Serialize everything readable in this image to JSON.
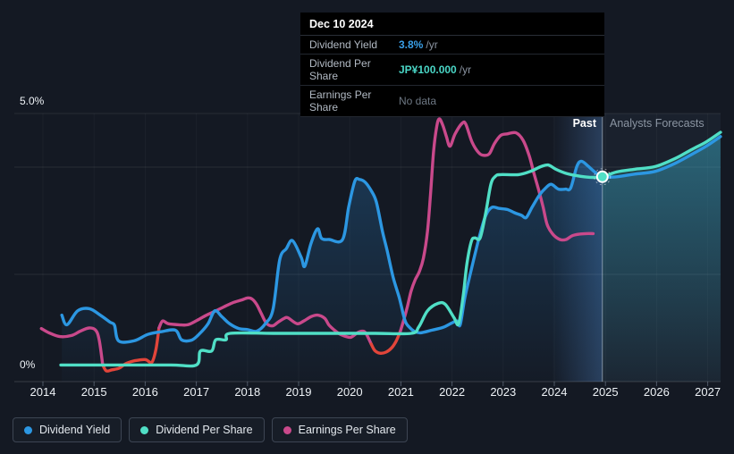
{
  "tooltip": {
    "date": "Dec 10 2024",
    "rows": [
      {
        "label": "Dividend Yield",
        "value": "3.8%",
        "suffix": "/yr",
        "color": "#3aa0e8"
      },
      {
        "label": "Dividend Per Share",
        "value": "JP¥100.000",
        "suffix": "/yr",
        "color": "#4ad6c6"
      },
      {
        "label": "Earnings Per Share",
        "value": "No data",
        "suffix": "",
        "color": "#6e7884"
      }
    ]
  },
  "y_axis": {
    "top_label": "5.0%",
    "bottom_label": "0%"
  },
  "annotations": {
    "past_label": "Past",
    "forecast_label": "Analysts Forecasts"
  },
  "legend": [
    {
      "label": "Dividend Yield",
      "color": "#2c97e2"
    },
    {
      "label": "Dividend Per Share",
      "color": "#50dfc6"
    },
    {
      "label": "Earnings Per Share",
      "color": "#c9498b"
    }
  ],
  "colors": {
    "background": "#141923",
    "dividend_yield": "#2c97e2",
    "dividend_per_share": "#50dfc6",
    "earnings_per_share": "#c9498b",
    "earnings_negative": "#e2453a",
    "gridline": "rgba(255,255,255,0.09)",
    "divider": "rgba(225,235,245,0.5)",
    "past_band": "rgba(90,150,225,0.30)",
    "forecast_band": "rgba(130,170,220,0.06)"
  },
  "chart_data": {
    "type": "line",
    "title": "Dividend history and forecast",
    "x_axis": {
      "unit": "year",
      "ticks": [
        2014,
        2015,
        2016,
        2017,
        2018,
        2019,
        2020,
        2021,
        2022,
        2023,
        2024,
        2025,
        2026,
        2027
      ],
      "range": [
        2013.9,
        2027.3
      ]
    },
    "y_axis": {
      "unit": "%",
      "min": 0,
      "max": 5,
      "gridline_values": [
        5,
        4,
        2,
        0
      ],
      "top_label": "5.0%",
      "bottom_label": "0%"
    },
    "divider": {
      "x": 2024.94,
      "date": "Dec 10 2024",
      "label_left": "Past",
      "label_right": "Analysts Forecasts",
      "band_start": 2023.95
    },
    "marker": {
      "x": 2024.94,
      "y": 3.82,
      "series": "Dividend Per Share"
    },
    "note": "Dividend Per Share (JP¥100.000/yr at marker) and Earnings Per Share are drawn on a hidden JP¥ scale; their values below are y-positions expressed on the visible 0–5% axis.",
    "series": [
      {
        "name": "Dividend Yield",
        "color": "#2c97e2",
        "points": [
          [
            2014.37,
            1.24
          ],
          [
            2014.47,
            1.06
          ],
          [
            2014.68,
            1.32
          ],
          [
            2014.91,
            1.36
          ],
          [
            2015.12,
            1.24
          ],
          [
            2015.31,
            1.11
          ],
          [
            2015.4,
            1.05
          ],
          [
            2015.48,
            0.76
          ],
          [
            2015.78,
            0.76
          ],
          [
            2016.05,
            0.88
          ],
          [
            2016.31,
            0.93
          ],
          [
            2016.59,
            0.96
          ],
          [
            2016.71,
            0.78
          ],
          [
            2016.9,
            0.77
          ],
          [
            2017.06,
            0.89
          ],
          [
            2017.23,
            1.08
          ],
          [
            2017.36,
            1.32
          ],
          [
            2017.5,
            1.21
          ],
          [
            2017.65,
            1.08
          ],
          [
            2017.83,
            0.99
          ],
          [
            2018.0,
            0.97
          ],
          [
            2018.18,
            0.94
          ],
          [
            2018.35,
            1.08
          ],
          [
            2018.5,
            1.35
          ],
          [
            2018.63,
            2.27
          ],
          [
            2018.76,
            2.48
          ],
          [
            2018.88,
            2.63
          ],
          [
            2019.05,
            2.32
          ],
          [
            2019.12,
            2.15
          ],
          [
            2019.24,
            2.57
          ],
          [
            2019.37,
            2.85
          ],
          [
            2019.45,
            2.67
          ],
          [
            2019.6,
            2.65
          ],
          [
            2019.86,
            2.65
          ],
          [
            2019.98,
            3.26
          ],
          [
            2020.1,
            3.74
          ],
          [
            2020.19,
            3.77
          ],
          [
            2020.3,
            3.72
          ],
          [
            2020.42,
            3.56
          ],
          [
            2020.52,
            3.35
          ],
          [
            2020.64,
            2.8
          ],
          [
            2020.73,
            2.45
          ],
          [
            2020.85,
            1.94
          ],
          [
            2020.97,
            1.56
          ],
          [
            2021.08,
            1.14
          ],
          [
            2021.17,
            1.01
          ],
          [
            2021.26,
            0.94
          ],
          [
            2021.38,
            0.91
          ],
          [
            2021.61,
            0.96
          ],
          [
            2021.82,
            1.01
          ],
          [
            2021.99,
            1.09
          ],
          [
            2022.1,
            1.13
          ],
          [
            2022.16,
            1.06
          ],
          [
            2022.25,
            1.56
          ],
          [
            2022.36,
            2.02
          ],
          [
            2022.45,
            2.38
          ],
          [
            2022.55,
            2.76
          ],
          [
            2022.66,
            3.1
          ],
          [
            2022.78,
            3.25
          ],
          [
            2022.92,
            3.23
          ],
          [
            2023.08,
            3.21
          ],
          [
            2023.22,
            3.15
          ],
          [
            2023.36,
            3.1
          ],
          [
            2023.45,
            3.06
          ],
          [
            2023.57,
            3.26
          ],
          [
            2023.71,
            3.48
          ],
          [
            2023.83,
            3.61
          ],
          [
            2023.94,
            3.68
          ],
          [
            2024.08,
            3.59
          ],
          [
            2024.22,
            3.59
          ],
          [
            2024.32,
            3.61
          ],
          [
            2024.44,
            4.01
          ],
          [
            2024.53,
            4.11
          ],
          [
            2024.66,
            4.02
          ],
          [
            2024.79,
            3.91
          ],
          [
            2024.94,
            3.82
          ]
        ],
        "forecast_points": [
          [
            2024.94,
            3.82
          ],
          [
            2025.22,
            3.82
          ],
          [
            2025.57,
            3.87
          ],
          [
            2025.97,
            3.92
          ],
          [
            2026.36,
            4.07
          ],
          [
            2026.71,
            4.25
          ],
          [
            2026.97,
            4.39
          ],
          [
            2027.25,
            4.57
          ]
        ]
      },
      {
        "name": "Dividend Per Share",
        "color": "#50dfc6",
        "points": [
          [
            2014.35,
            0.31
          ],
          [
            2015.5,
            0.31
          ],
          [
            2016.5,
            0.31
          ],
          [
            2017.0,
            0.31
          ],
          [
            2017.08,
            0.57
          ],
          [
            2017.3,
            0.57
          ],
          [
            2017.38,
            0.78
          ],
          [
            2017.58,
            0.78
          ],
          [
            2017.66,
            0.9
          ],
          [
            2018.5,
            0.9
          ],
          [
            2019.5,
            0.9
          ],
          [
            2020.5,
            0.9
          ],
          [
            2021.2,
            0.9
          ],
          [
            2021.35,
            1.02
          ],
          [
            2021.52,
            1.32
          ],
          [
            2021.73,
            1.46
          ],
          [
            2021.87,
            1.44
          ],
          [
            2022.04,
            1.19
          ],
          [
            2022.13,
            1.08
          ],
          [
            2022.22,
            1.61
          ],
          [
            2022.29,
            2.19
          ],
          [
            2022.38,
            2.62
          ],
          [
            2022.45,
            2.68
          ],
          [
            2022.55,
            2.68
          ],
          [
            2022.66,
            3.15
          ],
          [
            2022.76,
            3.68
          ],
          [
            2022.85,
            3.83
          ],
          [
            2022.95,
            3.86
          ],
          [
            2023.3,
            3.86
          ],
          [
            2023.53,
            3.92
          ],
          [
            2023.74,
            4.01
          ],
          [
            2023.88,
            4.04
          ],
          [
            2024.03,
            3.96
          ],
          [
            2024.21,
            3.89
          ],
          [
            2024.44,
            3.84
          ],
          [
            2024.7,
            3.81
          ],
          [
            2024.94,
            3.82
          ]
        ],
        "forecast_points": [
          [
            2024.94,
            3.82
          ],
          [
            2025.22,
            3.91
          ],
          [
            2025.57,
            3.96
          ],
          [
            2025.97,
            4.01
          ],
          [
            2026.36,
            4.16
          ],
          [
            2026.71,
            4.34
          ],
          [
            2026.97,
            4.47
          ],
          [
            2027.25,
            4.65
          ]
        ]
      },
      {
        "name": "Earnings Per Share",
        "color": "#c9498b",
        "negative_color": "#e2453a",
        "red_ranges": [
          [
            2015.08,
            2016.18
          ],
          [
            2020.36,
            2020.93
          ]
        ],
        "points": [
          [
            2013.97,
            0.99
          ],
          [
            2014.12,
            0.91
          ],
          [
            2014.33,
            0.84
          ],
          [
            2014.56,
            0.86
          ],
          [
            2014.73,
            0.94
          ],
          [
            2014.9,
            1.0
          ],
          [
            2015.03,
            0.96
          ],
          [
            2015.1,
            0.78
          ],
          [
            2015.17,
            0.31
          ],
          [
            2015.24,
            0.2
          ],
          [
            2015.35,
            0.22
          ],
          [
            2015.49,
            0.25
          ],
          [
            2015.61,
            0.33
          ],
          [
            2015.75,
            0.38
          ],
          [
            2015.87,
            0.4
          ],
          [
            2016.01,
            0.41
          ],
          [
            2016.13,
            0.36
          ],
          [
            2016.21,
            0.6
          ],
          [
            2016.27,
            1.0
          ],
          [
            2016.34,
            1.13
          ],
          [
            2016.45,
            1.08
          ],
          [
            2016.66,
            1.06
          ],
          [
            2016.83,
            1.06
          ],
          [
            2017.01,
            1.14
          ],
          [
            2017.18,
            1.23
          ],
          [
            2017.36,
            1.31
          ],
          [
            2017.53,
            1.39
          ],
          [
            2017.71,
            1.47
          ],
          [
            2017.88,
            1.52
          ],
          [
            2018.0,
            1.56
          ],
          [
            2018.09,
            1.54
          ],
          [
            2018.18,
            1.44
          ],
          [
            2018.27,
            1.27
          ],
          [
            2018.37,
            1.09
          ],
          [
            2018.49,
            1.04
          ],
          [
            2018.6,
            1.11
          ],
          [
            2018.72,
            1.18
          ],
          [
            2018.79,
            1.19
          ],
          [
            2018.97,
            1.08
          ],
          [
            2019.1,
            1.13
          ],
          [
            2019.24,
            1.21
          ],
          [
            2019.37,
            1.24
          ],
          [
            2019.51,
            1.18
          ],
          [
            2019.59,
            1.06
          ],
          [
            2019.7,
            0.96
          ],
          [
            2019.8,
            0.89
          ],
          [
            2019.93,
            0.84
          ],
          [
            2020.03,
            0.83
          ],
          [
            2020.15,
            0.91
          ],
          [
            2020.24,
            0.94
          ],
          [
            2020.31,
            0.91
          ],
          [
            2020.42,
            0.7
          ],
          [
            2020.49,
            0.58
          ],
          [
            2020.59,
            0.53
          ],
          [
            2020.71,
            0.55
          ],
          [
            2020.82,
            0.63
          ],
          [
            2020.91,
            0.76
          ],
          [
            2020.99,
            0.94
          ],
          [
            2021.06,
            1.16
          ],
          [
            2021.13,
            1.41
          ],
          [
            2021.2,
            1.69
          ],
          [
            2021.28,
            1.9
          ],
          [
            2021.36,
            2.05
          ],
          [
            2021.44,
            2.3
          ],
          [
            2021.52,
            2.8
          ],
          [
            2021.58,
            3.5
          ],
          [
            2021.64,
            4.3
          ],
          [
            2021.7,
            4.75
          ],
          [
            2021.75,
            4.9
          ],
          [
            2021.82,
            4.78
          ],
          [
            2021.89,
            4.57
          ],
          [
            2021.96,
            4.39
          ],
          [
            2022.06,
            4.62
          ],
          [
            2022.2,
            4.82
          ],
          [
            2022.27,
            4.8
          ],
          [
            2022.39,
            4.47
          ],
          [
            2022.52,
            4.27
          ],
          [
            2022.62,
            4.22
          ],
          [
            2022.73,
            4.25
          ],
          [
            2022.83,
            4.44
          ],
          [
            2022.95,
            4.59
          ],
          [
            2023.08,
            4.62
          ],
          [
            2023.25,
            4.64
          ],
          [
            2023.39,
            4.5
          ],
          [
            2023.51,
            4.21
          ],
          [
            2023.6,
            3.89
          ],
          [
            2023.69,
            3.59
          ],
          [
            2023.78,
            3.26
          ],
          [
            2023.86,
            2.93
          ],
          [
            2023.97,
            2.75
          ],
          [
            2024.11,
            2.65
          ],
          [
            2024.23,
            2.65
          ],
          [
            2024.35,
            2.72
          ],
          [
            2024.49,
            2.75
          ],
          [
            2024.62,
            2.76
          ],
          [
            2024.76,
            2.76
          ]
        ]
      }
    ]
  }
}
